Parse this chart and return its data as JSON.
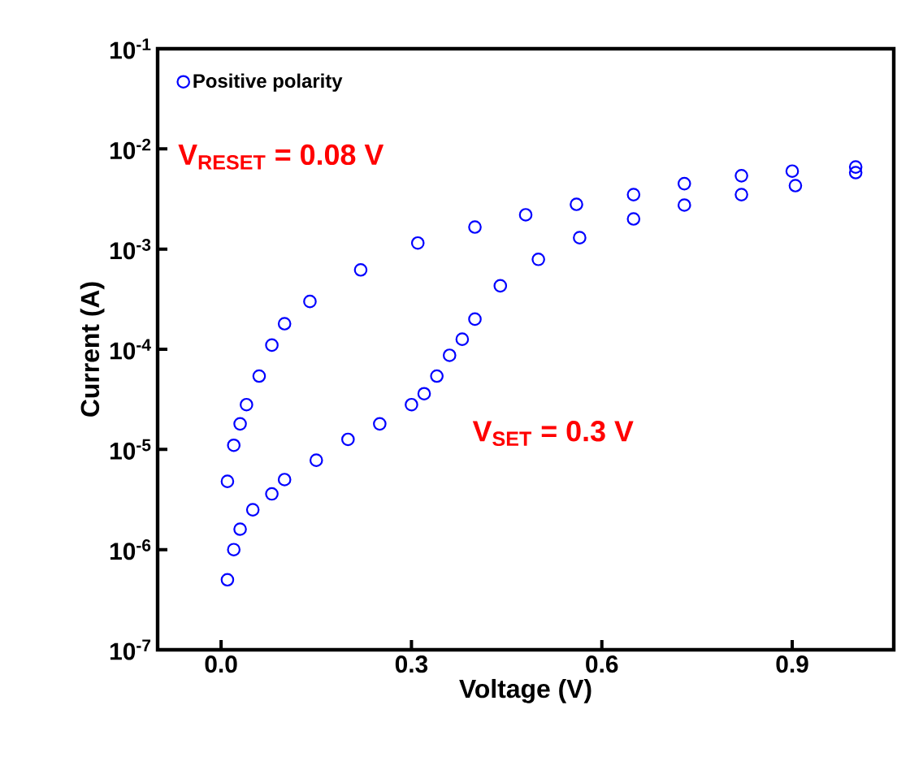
{
  "chart_data": {
    "type": "scatter",
    "xlabel": "Voltage (V)",
    "ylabel": "Current (A)",
    "xlim": [
      -0.1,
      1.06
    ],
    "ylim": [
      1e-07,
      0.1
    ],
    "log": "y",
    "marker": "circle",
    "legend": "top left",
    "xticks": [
      {
        "value": 0,
        "label": "0.0"
      },
      0.3,
      0.6,
      0.9
    ],
    "yticks": [
      {
        "value": 1e-07,
        "label": "10$^{-7}$"
      },
      {
        "value": 1e-06,
        "label": "10$^{-6}$"
      },
      {
        "value": 1e-05,
        "label": "10$^{-5}$"
      },
      {
        "value": 0.0001,
        "label": "10$^{-4}$"
      },
      {
        "value": 0.001,
        "label": "10$^{-3}$"
      },
      {
        "value": 0.01,
        "label": "10$^{-2}$"
      },
      {
        "value": 0.1,
        "label": "10$^{-1}$"
      }
    ],
    "annotations": [
      "V$_{RESET}$ = 0.08 V",
      "V$_{SET}$ = 0.3 V"
    ],
    "series": [
      {
        "name": "Positive polarity",
        "color": "#0000ff",
        "x": [
          0.01,
          0.02,
          0.03,
          0.05,
          0.08,
          0.1,
          0.15,
          0.2,
          0.25,
          0.3,
          0.32,
          0.34,
          0.36,
          0.38,
          0.4,
          0.44,
          0.5,
          0.565,
          0.65,
          0.73,
          0.82,
          0.905,
          1.0,
          1.0,
          0.9,
          0.82,
          0.73,
          0.65,
          0.56,
          0.48,
          0.4,
          0.31,
          0.22,
          0.14,
          0.1,
          0.08,
          0.06,
          0.04,
          0.03,
          0.02,
          0.01
        ],
        "values": [
          5e-07,
          1e-06,
          1.6e-06,
          2.5e-06,
          3.6e-06,
          5e-06,
          7.8e-06,
          1.26e-05,
          1.8e-05,
          2.8e-05,
          3.6e-05,
          5.4e-05,
          8.7e-05,
          0.000126,
          0.0002,
          0.00043,
          0.00079,
          0.0013,
          0.002,
          0.00275,
          0.0035,
          0.0043,
          0.0058,
          0.0066,
          0.006,
          0.0054,
          0.0045,
          0.0035,
          0.0028,
          0.0022,
          0.00166,
          0.00115,
          0.00062,
          0.0003,
          0.00018,
          0.00011,
          5.4e-05,
          2.8e-05,
          1.8e-05,
          1.1e-05,
          4.8e-06
        ]
      }
    ]
  }
}
